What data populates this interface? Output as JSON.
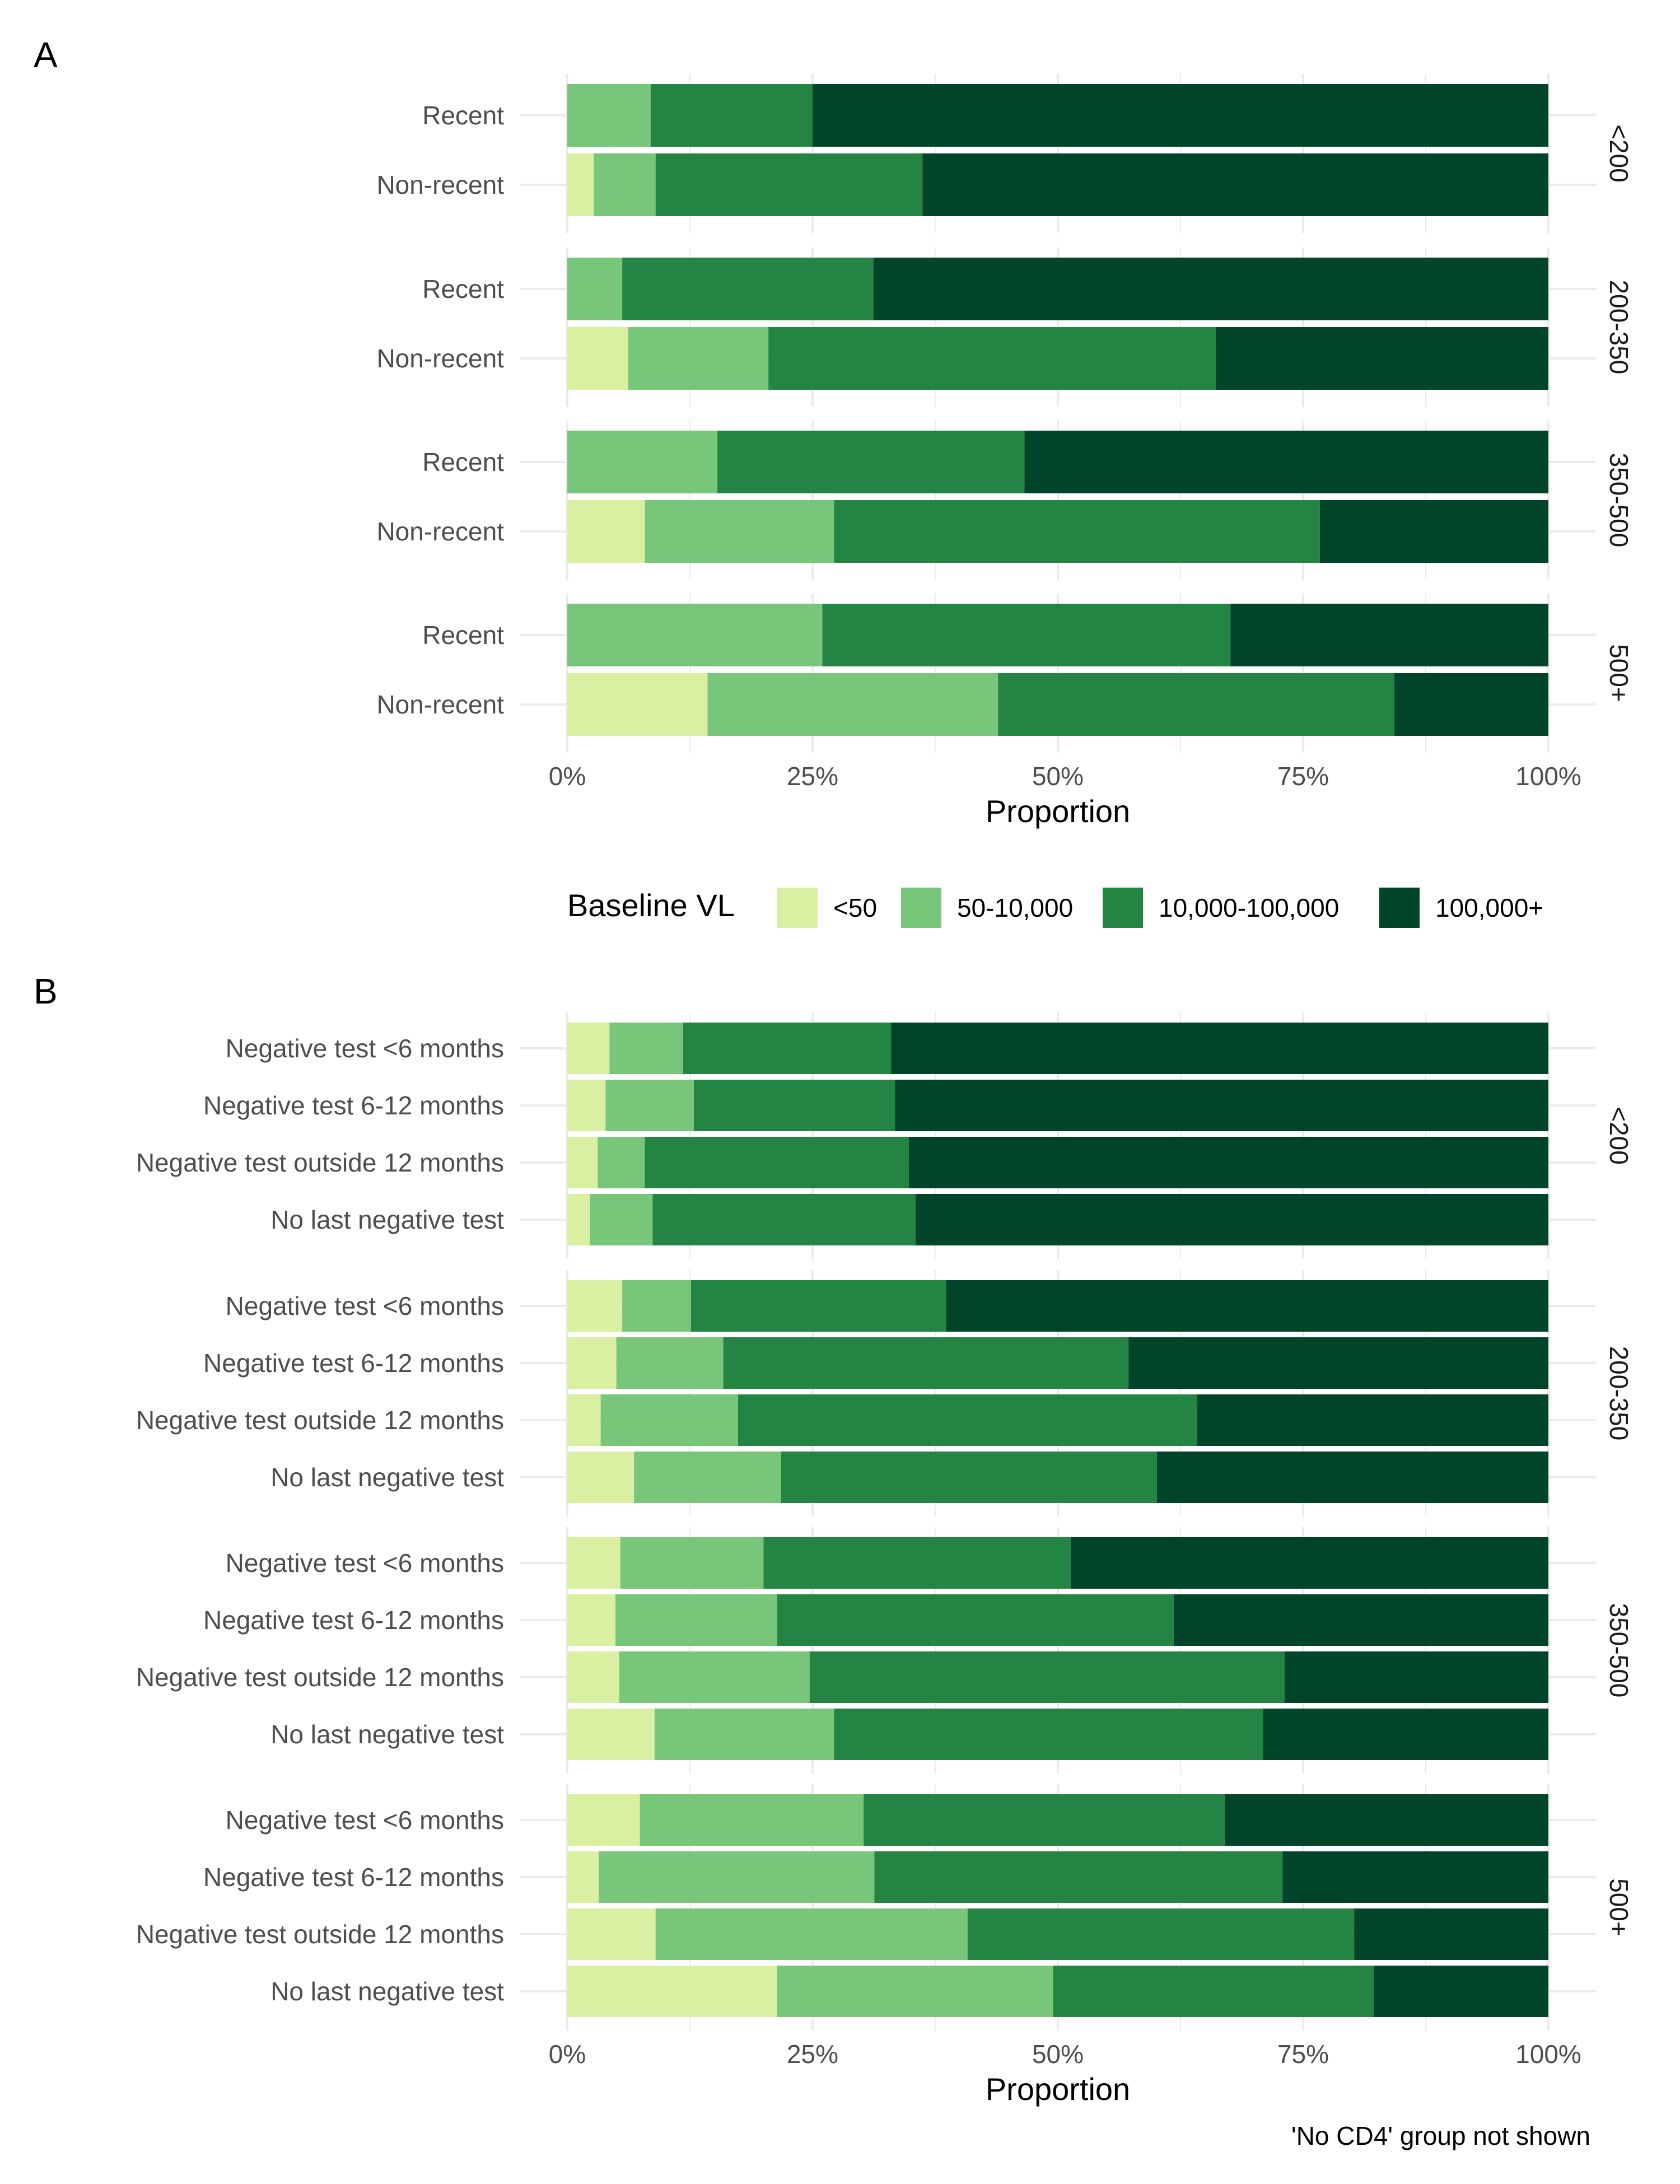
{
  "legend": {
    "title": "Baseline VL",
    "position": "middle",
    "keys": [
      "<50",
      "50-10,000",
      "10,000-100,000",
      "100,000+"
    ],
    "colors": [
      "#d9f0a3",
      "#78c679",
      "#238443",
      "#004529"
    ]
  },
  "caption": "'No CD4' group not shown",
  "chart_data": [
    {
      "type": "bar",
      "orientation": "horizontal",
      "stacked": true,
      "panel": "A",
      "xlabel": "Proportion",
      "xlim": [
        0,
        1
      ],
      "x_ticks": [
        "0%",
        "25%",
        "50%",
        "75%",
        "100%"
      ],
      "grid": true,
      "facets": [
        {
          "strip": "<200",
          "rows": [
            {
              "label": "Recent",
              "values": [
                0.0,
                0.085,
                0.165,
                0.75
              ]
            },
            {
              "label": "Non-recent",
              "values": [
                0.027,
                0.063,
                0.272,
                0.638
              ]
            }
          ]
        },
        {
          "strip": "200-350",
          "rows": [
            {
              "label": "Recent",
              "values": [
                0.0,
                0.056,
                0.256,
                0.688
              ]
            },
            {
              "label": "Non-recent",
              "values": [
                0.062,
                0.143,
                0.456,
                0.339
              ]
            }
          ]
        },
        {
          "strip": "350-500",
          "rows": [
            {
              "label": "Recent",
              "values": [
                0.0,
                0.153,
                0.313,
                0.534
              ]
            },
            {
              "label": "Non-recent",
              "values": [
                0.079,
                0.193,
                0.495,
                0.233
              ]
            }
          ]
        },
        {
          "strip": "500+",
          "rows": [
            {
              "label": "Recent",
              "values": [
                0.0,
                0.26,
                0.416,
                0.324
              ]
            },
            {
              "label": "Non-recent",
              "values": [
                0.143,
                0.296,
                0.404,
                0.157
              ]
            }
          ]
        }
      ]
    },
    {
      "type": "bar",
      "orientation": "horizontal",
      "stacked": true,
      "panel": "B",
      "xlabel": "Proportion",
      "xlim": [
        0,
        1
      ],
      "x_ticks": [
        "0%",
        "25%",
        "50%",
        "75%",
        "100%"
      ],
      "grid": true,
      "facets": [
        {
          "strip": "<200",
          "rows": [
            {
              "label": "Negative test <6 months",
              "values": [
                0.043,
                0.075,
                0.212,
                0.67
              ]
            },
            {
              "label": "Negative test 6-12 months",
              "values": [
                0.039,
                0.09,
                0.205,
                0.666
              ]
            },
            {
              "label": "Negative test outside 12 months",
              "values": [
                0.031,
                0.048,
                0.269,
                0.652
              ]
            },
            {
              "label": "No last negative test",
              "values": [
                0.023,
                0.064,
                0.268,
                0.645
              ]
            }
          ]
        },
        {
          "strip": "200-350",
          "rows": [
            {
              "label": "Negative test <6 months",
              "values": [
                0.056,
                0.07,
                0.26,
                0.614
              ]
            },
            {
              "label": "Negative test 6-12 months",
              "values": [
                0.05,
                0.109,
                0.413,
                0.428
              ]
            },
            {
              "label": "Negative test outside 12 months",
              "values": [
                0.034,
                0.14,
                0.468,
                0.358
              ]
            },
            {
              "label": "No last negative test",
              "values": [
                0.068,
                0.15,
                0.383,
                0.399
              ]
            }
          ]
        },
        {
          "strip": "350-500",
          "rows": [
            {
              "label": "Negative test <6 months",
              "values": [
                0.054,
                0.146,
                0.313,
                0.487
              ]
            },
            {
              "label": "Negative test 6-12 months",
              "values": [
                0.049,
                0.165,
                0.404,
                0.382
              ]
            },
            {
              "label": "Negative test outside 12 months",
              "values": [
                0.053,
                0.194,
                0.484,
                0.269
              ]
            },
            {
              "label": "No last negative test",
              "values": [
                0.089,
                0.183,
                0.437,
                0.291
              ]
            }
          ]
        },
        {
          "strip": "500+",
          "rows": [
            {
              "label": "Negative test <6 months",
              "values": [
                0.074,
                0.228,
                0.368,
                0.33
              ]
            },
            {
              "label": "Negative test 6-12 months",
              "values": [
                0.032,
                0.281,
                0.416,
                0.271
              ]
            },
            {
              "label": "Negative test outside 12 months",
              "values": [
                0.09,
                0.318,
                0.394,
                0.198
              ]
            },
            {
              "label": "No last negative test",
              "values": [
                0.214,
                0.281,
                0.327,
                0.178
              ]
            }
          ]
        }
      ]
    }
  ]
}
